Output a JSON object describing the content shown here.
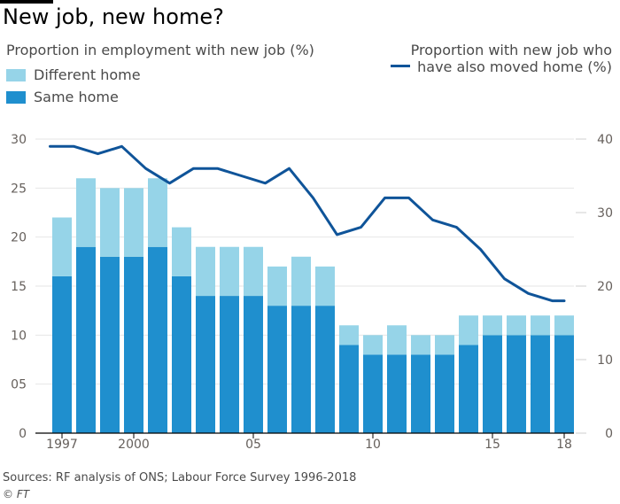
{
  "title": "New job, new home?",
  "subtitle_left": "Proportion in employment with new job (%)",
  "subtitle_right_line1": "Proportion with new job who",
  "subtitle_right_line2": "have also moved home (%)",
  "source": "Sources: RF analysis of ONS; Labour Force Survey 1996-2018",
  "credit": "© FT",
  "colors": {
    "different_home": "#96d4e8",
    "same_home": "#1f8fce",
    "line": "#0f5499",
    "grid": "#e6e6e6",
    "axis_text": "#66605c"
  },
  "chart_data": {
    "type": "bar",
    "stacked": true,
    "categories": [
      "1997",
      "1998",
      "1999",
      "2000",
      "2001",
      "2002",
      "2003",
      "2004",
      "2005",
      "2006",
      "2007",
      "2008",
      "2009",
      "2010",
      "2011",
      "2012",
      "2013",
      "2014",
      "2015",
      "2016",
      "2017",
      "2018"
    ],
    "x_tick_labels": [
      "1997",
      "2000",
      "05",
      "10",
      "15",
      "18"
    ],
    "x_tick_categories": [
      "1997",
      "2000",
      "2005",
      "2010",
      "2015",
      "2018"
    ],
    "series": [
      {
        "name": "Same home",
        "values": [
          16,
          19,
          18,
          18,
          19,
          16,
          14,
          14,
          14,
          13,
          13,
          13,
          9,
          8,
          8,
          8,
          8,
          9,
          10,
          10,
          10,
          10
        ]
      },
      {
        "name": "Different home",
        "values": [
          6,
          7,
          7,
          7,
          7,
          5,
          5,
          5,
          5,
          4,
          5,
          4,
          2,
          2,
          3,
          2,
          2,
          3,
          2,
          2,
          2,
          2
        ]
      }
    ],
    "line_series": {
      "name": "Proportion with new job who have also moved home (%)",
      "axis": "right",
      "x": [
        1996.5,
        1997.5,
        1998.5,
        1999.5,
        2000.5,
        2001.5,
        2002.5,
        2003.5,
        2004.5,
        2005.5,
        2006.5,
        2007.5,
        2008.5,
        2009.5,
        2010.5,
        2011.5,
        2012.5,
        2013.5,
        2014.5,
        2015.5,
        2016.5,
        2017.5,
        2018
      ],
      "values": [
        39,
        39,
        38,
        39,
        36,
        34,
        36,
        36,
        35,
        34,
        36,
        32,
        27,
        28,
        32,
        32,
        29,
        28,
        25,
        21,
        19,
        18,
        18
      ]
    },
    "left_axis": {
      "ylim": [
        0,
        30
      ],
      "ticks": [
        "0",
        "05",
        "10",
        "15",
        "20",
        "25",
        "30"
      ]
    },
    "right_axis": {
      "ylim": [
        0,
        40
      ],
      "ticks": [
        "0",
        "10",
        "20",
        "30",
        "40"
      ]
    },
    "grid": true
  }
}
